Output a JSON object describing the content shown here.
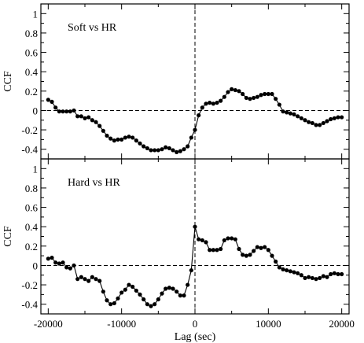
{
  "chart_data": [
    {
      "type": "line",
      "panel_label": "Soft vs HR",
      "xlabel": "Lag (sec)",
      "ylabel": "CCF",
      "xlim": [
        -21000,
        21000
      ],
      "ylim": [
        -0.5,
        1.1
      ],
      "xticks": [
        -20000,
        -10000,
        0,
        10000,
        20000
      ],
      "xtick_labels": [
        "-20000",
        "-10000",
        "0",
        "10000",
        "20000"
      ],
      "yticks": [
        -0.4,
        -0.2,
        0,
        0.2,
        0.4,
        0.6,
        0.8,
        1
      ],
      "ytick_labels": [
        "-0.4",
        "-0.2",
        "0",
        "0.2",
        "0.4",
        "0.6",
        "0.8",
        "1"
      ],
      "reference_lines": {
        "y": 0,
        "x": 0,
        "style": "dashed"
      },
      "series": [
        {
          "x": [
            -20000,
            -19500,
            -19000,
            -18500,
            -18000,
            -17500,
            -17000,
            -16500,
            -16000,
            -15500,
            -15000,
            -14500,
            -14000,
            -13500,
            -13000,
            -12500,
            -12000,
            -11500,
            -11000,
            -10500,
            -10000,
            -9500,
            -9000,
            -8500,
            -8000,
            -7500,
            -7000,
            -6500,
            -6000,
            -5500,
            -5000,
            -4500,
            -4000,
            -3500,
            -3000,
            -2500,
            -2000,
            -1500,
            -1000,
            -500,
            0,
            500,
            1000,
            1500,
            2000,
            2500,
            3000,
            3500,
            4000,
            4500,
            5000,
            5500,
            6000,
            6500,
            7000,
            7500,
            8000,
            8500,
            9000,
            9500,
            10000,
            10500,
            11000,
            11500,
            12000,
            12500,
            13000,
            13500,
            14000,
            14500,
            15000,
            15500,
            16000,
            16500,
            17000,
            17500,
            18000,
            18500,
            19000,
            19500,
            20000
          ],
          "y": [
            0.11,
            0.09,
            0.03,
            -0.01,
            -0.01,
            -0.01,
            -0.01,
            0.0,
            -0.06,
            -0.06,
            -0.08,
            -0.07,
            -0.1,
            -0.12,
            -0.16,
            -0.21,
            -0.26,
            -0.29,
            -0.31,
            -0.3,
            -0.3,
            -0.28,
            -0.27,
            -0.28,
            -0.31,
            -0.34,
            -0.37,
            -0.39,
            -0.41,
            -0.41,
            -0.41,
            -0.4,
            -0.38,
            -0.39,
            -0.41,
            -0.43,
            -0.42,
            -0.4,
            -0.37,
            -0.28,
            -0.2,
            -0.05,
            0.03,
            0.07,
            0.08,
            0.07,
            0.08,
            0.1,
            0.14,
            0.19,
            0.22,
            0.21,
            0.2,
            0.17,
            0.13,
            0.12,
            0.13,
            0.14,
            0.16,
            0.17,
            0.17,
            0.17,
            0.12,
            0.06,
            -0.01,
            -0.02,
            -0.03,
            -0.04,
            -0.06,
            -0.08,
            -0.1,
            -0.12,
            -0.13,
            -0.15,
            -0.15,
            -0.13,
            -0.11,
            -0.09,
            -0.08,
            -0.07,
            -0.07
          ]
        }
      ]
    },
    {
      "type": "line",
      "panel_label": "Hard vs HR",
      "xlabel": "Lag (sec)",
      "ylabel": "CCF",
      "xlim": [
        -21000,
        21000
      ],
      "ylim": [
        -0.5,
        1.1
      ],
      "xticks": [
        -20000,
        -10000,
        0,
        10000,
        20000
      ],
      "xtick_labels": [
        "-20000",
        "-10000",
        "0",
        "10000",
        "20000"
      ],
      "yticks": [
        -0.4,
        -0.2,
        0,
        0.2,
        0.4,
        0.6,
        0.8,
        1
      ],
      "ytick_labels": [
        "-0.4",
        "-0.2",
        "0",
        "0.2",
        "0.4",
        "0.6",
        "0.8",
        "1"
      ],
      "reference_lines": {
        "y": 0,
        "x": 0,
        "style": "dashed"
      },
      "series": [
        {
          "x": [
            -20000,
            -19500,
            -19000,
            -18500,
            -18000,
            -17500,
            -17000,
            -16500,
            -16000,
            -15500,
            -15000,
            -14500,
            -14000,
            -13500,
            -13000,
            -12500,
            -12000,
            -11500,
            -11000,
            -10500,
            -10000,
            -9500,
            -9000,
            -8500,
            -8000,
            -7500,
            -7000,
            -6500,
            -6000,
            -5500,
            -5000,
            -4500,
            -4000,
            -3500,
            -3000,
            -2500,
            -2000,
            -1500,
            -1000,
            -500,
            0,
            500,
            1000,
            1500,
            2000,
            2500,
            3000,
            3500,
            4000,
            4500,
            5000,
            5500,
            6000,
            6500,
            7000,
            7500,
            8000,
            8500,
            9000,
            9500,
            10000,
            10500,
            11000,
            11500,
            12000,
            12500,
            13000,
            13500,
            14000,
            14500,
            15000,
            15500,
            16000,
            16500,
            17000,
            17500,
            18000,
            18500,
            19000,
            19500,
            20000
          ],
          "y": [
            0.07,
            0.08,
            0.03,
            0.02,
            0.03,
            -0.02,
            -0.03,
            0.0,
            -0.14,
            -0.12,
            -0.14,
            -0.16,
            -0.12,
            -0.14,
            -0.16,
            -0.27,
            -0.36,
            -0.4,
            -0.39,
            -0.34,
            -0.28,
            -0.25,
            -0.2,
            -0.22,
            -0.26,
            -0.3,
            -0.35,
            -0.4,
            -0.42,
            -0.4,
            -0.35,
            -0.29,
            -0.24,
            -0.23,
            -0.24,
            -0.27,
            -0.31,
            -0.31,
            -0.2,
            -0.05,
            0.4,
            0.27,
            0.26,
            0.24,
            0.16,
            0.16,
            0.16,
            0.17,
            0.26,
            0.28,
            0.28,
            0.27,
            0.17,
            0.11,
            0.1,
            0.11,
            0.15,
            0.19,
            0.18,
            0.19,
            0.16,
            0.1,
            0.04,
            -0.02,
            -0.04,
            -0.05,
            -0.06,
            -0.07,
            -0.08,
            -0.1,
            -0.13,
            -0.12,
            -0.13,
            -0.14,
            -0.13,
            -0.11,
            -0.12,
            -0.09,
            -0.08,
            -0.09,
            -0.09
          ]
        }
      ]
    }
  ]
}
